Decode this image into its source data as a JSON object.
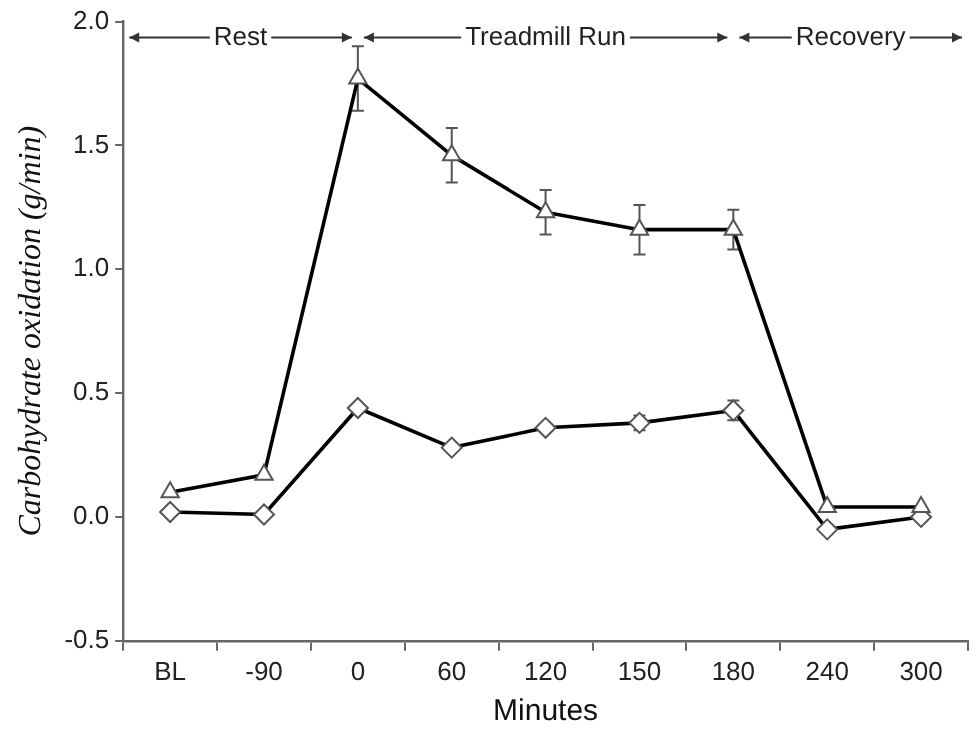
{
  "chart_data": {
    "type": "line",
    "xlabel": "Minutes",
    "ylabel": "Carbohydrate oxidation (g/min)",
    "categories": [
      "BL",
      "-90",
      "0",
      "60",
      "120",
      "150",
      "180",
      "240",
      "300"
    ],
    "series": [
      {
        "color": "#000000",
        "marker": "triangle",
        "values": [
          0.1,
          0.17,
          1.77,
          1.46,
          1.23,
          1.16,
          1.16,
          0.04,
          0.04
        ],
        "errors": [
          null,
          null,
          0.13,
          0.11,
          0.09,
          0.1,
          0.08,
          null,
          null
        ]
      },
      {
        "color": "#000000",
        "marker": "diamond",
        "values": [
          0.02,
          0.01,
          0.44,
          0.28,
          0.36,
          0.38,
          0.43,
          -0.05,
          0.0
        ],
        "errors": [
          null,
          null,
          null,
          null,
          null,
          0.03,
          0.04,
          null,
          null
        ]
      }
    ],
    "ylim": [
      -0.5,
      2.0
    ],
    "yticks": [
      -0.5,
      {
        "value": 0,
        "label": "0.0"
      },
      0.5,
      {
        "value": 1,
        "label": "1.0"
      },
      1.5,
      {
        "value": 2,
        "label": "2.0"
      }
    ],
    "annotations": [
      "Rest",
      "Treadmill Run",
      "Recovery"
    ],
    "grid": false,
    "legend": false,
    "line_style": "solid"
  }
}
